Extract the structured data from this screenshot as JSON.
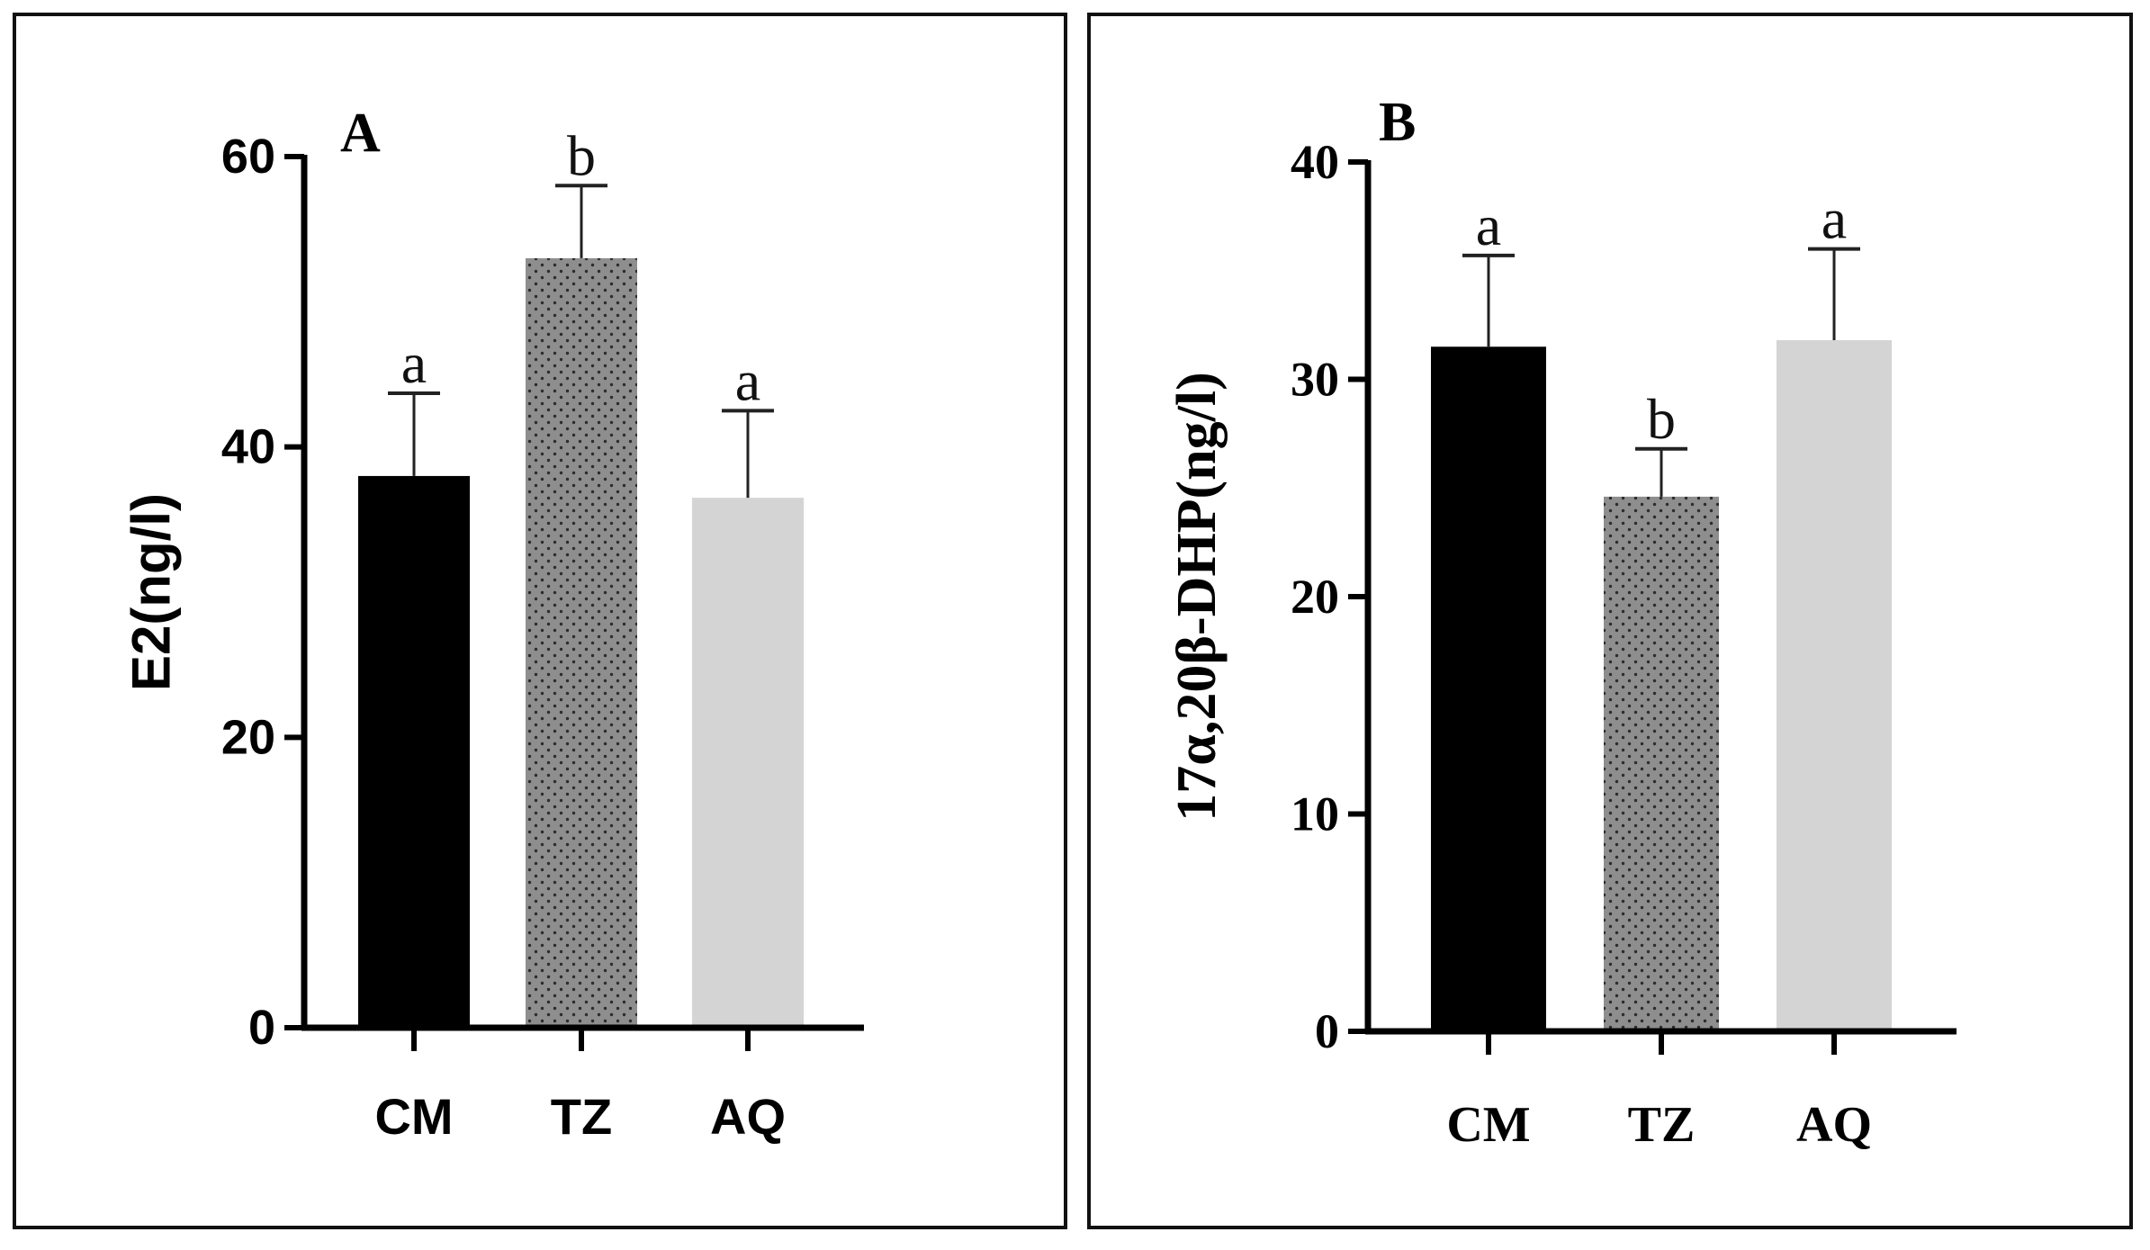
{
  "chart_data": [
    {
      "type": "bar",
      "panel_label": "A",
      "title": "",
      "xlabel": "",
      "ylabel": "E2(ng/l)",
      "categories": [
        "CM",
        "TZ",
        "AQ"
      ],
      "values": [
        38,
        53,
        36.5
      ],
      "error_upper": [
        5.7,
        5,
        6
      ],
      "significance": [
        "a",
        "b",
        "a"
      ],
      "bar_fills": [
        "solid-black",
        "dotted-gray",
        "light-gray"
      ],
      "colors": {
        "black": "#000000",
        "gray": "#8e8e8e",
        "light": "#d4d4d4"
      },
      "ylim": [
        0,
        60
      ],
      "yticks": [
        0,
        20,
        40,
        60
      ],
      "grid": false
    },
    {
      "type": "bar",
      "panel_label": "B",
      "title": "",
      "xlabel": "",
      "ylabel": "17α,20β-DHP(ng/l)",
      "categories": [
        "CM",
        "TZ",
        "AQ"
      ],
      "values": [
        31.5,
        24.6,
        31.8
      ],
      "error_upper": [
        4.2,
        2.2,
        4.2
      ],
      "significance": [
        "a",
        "b",
        "a"
      ],
      "bar_fills": [
        "solid-black",
        "dotted-gray",
        "light-gray"
      ],
      "colors": {
        "black": "#000000",
        "gray": "#8e8e8e",
        "light": "#d4d4d4"
      },
      "ylim": [
        0,
        40
      ],
      "yticks": [
        0,
        10,
        20,
        30,
        40
      ],
      "grid": false
    }
  ]
}
